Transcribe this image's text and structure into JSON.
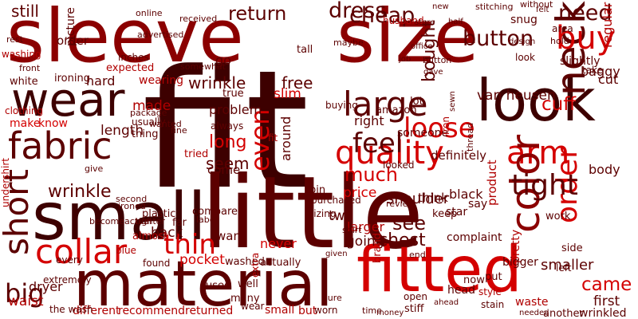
{
  "cloud": {
    "background": "#ffffff",
    "palette": {
      "darkest": "#3d0000",
      "dark": "#5c0000",
      "deep": "#8b0000",
      "mid": "#b00000",
      "bright": "#d40000",
      "light": "#e04040",
      "pale": "#e88080"
    },
    "words": [
      {
        "text": "fit",
        "tone": "darkest",
        "weight": 10
      },
      {
        "text": "little",
        "tone": "dark",
        "weight": 9
      },
      {
        "text": "sleeve",
        "tone": "deep",
        "weight": 8
      },
      {
        "text": "size",
        "tone": "deep",
        "weight": 8
      },
      {
        "text": "material",
        "tone": "dark",
        "weight": 7
      },
      {
        "text": "fitted",
        "tone": "bright",
        "weight": 7
      },
      {
        "text": "small",
        "tone": "darkest",
        "weight": 7
      },
      {
        "text": "look",
        "tone": "darkest",
        "weight": 7
      },
      {
        "text": "wear",
        "tone": "darkest",
        "weight": 6
      },
      {
        "text": "fabric",
        "tone": "dark",
        "weight": 5
      },
      {
        "text": "quality",
        "tone": "bright",
        "weight": 5
      },
      {
        "text": "arm",
        "tone": "bright",
        "weight": 5
      },
      {
        "text": "neck",
        "tone": "dark",
        "weight": 5
      },
      {
        "text": "color",
        "tone": "deep",
        "weight": 5
      },
      {
        "text": "collar",
        "tone": "bright",
        "weight": 5
      },
      {
        "text": "buy",
        "tone": "bright",
        "weight": 5
      },
      {
        "text": "large",
        "tone": "dark",
        "weight": 5
      },
      {
        "text": "short",
        "tone": "dark",
        "weight": 5
      },
      {
        "text": "order",
        "tone": "bright",
        "weight": 4
      },
      {
        "text": "tight",
        "tone": "dark",
        "weight": 4
      },
      {
        "text": "feel",
        "tone": "dark",
        "weight": 4
      },
      {
        "text": "loose",
        "tone": "bright",
        "weight": 4
      },
      {
        "text": "thin",
        "tone": "bright",
        "weight": 4
      },
      {
        "text": "big",
        "tone": "dark",
        "weight": 4
      },
      {
        "text": "even",
        "tone": "bright",
        "weight": 4
      },
      {
        "text": "button",
        "tone": "dark",
        "weight": 3
      },
      {
        "text": "dress",
        "tone": "dark",
        "weight": 3
      },
      {
        "text": "return",
        "tone": "dark",
        "weight": 3
      },
      {
        "text": "cheap",
        "tone": "dark",
        "weight": 3
      },
      {
        "text": "need",
        "tone": "dark",
        "weight": 3
      },
      {
        "text": "wrinkle",
        "tone": "dark",
        "weight": 3
      },
      {
        "text": "much",
        "tone": "bright",
        "weight": 3
      },
      {
        "text": "see",
        "tone": "dark",
        "weight": 3
      },
      {
        "text": "chest",
        "tone": "dark",
        "weight": 3
      },
      {
        "text": "came",
        "tone": "bright",
        "weight": 3
      },
      {
        "text": "long",
        "tone": "bright",
        "weight": 3
      },
      {
        "text": "cuff",
        "tone": "bright",
        "weight": 3
      },
      {
        "text": "bought",
        "tone": "dark",
        "weight": 3
      },
      {
        "text": "still",
        "tone": "dark",
        "weight": 2
      },
      {
        "text": "seem",
        "tone": "dark",
        "weight": 2
      },
      {
        "text": "made",
        "tone": "mid",
        "weight": 2
      },
      {
        "text": "free",
        "tone": "dark",
        "weight": 2
      },
      {
        "text": "wrinkle",
        "tone": "dark",
        "weight": 2
      },
      {
        "text": "shoulder",
        "tone": "dark",
        "weight": 2
      },
      {
        "text": "larger",
        "tone": "mid",
        "weight": 2
      },
      {
        "text": "price",
        "tone": "bright",
        "weight": 2
      },
      {
        "text": "two",
        "tone": "dark",
        "weight": 2
      },
      {
        "text": "going",
        "tone": "dark",
        "weight": 2
      },
      {
        "text": "smaller",
        "tone": "dark",
        "weight": 2
      },
      {
        "text": "pocket",
        "tone": "bright",
        "weight": 2
      },
      {
        "text": "back",
        "tone": "dark",
        "weight": 2
      },
      {
        "text": "van heusen",
        "tone": "dark",
        "weight": 2
      },
      {
        "text": "length",
        "tone": "dark",
        "weight": 2
      },
      {
        "text": "problem",
        "tone": "dark",
        "weight": 2
      },
      {
        "text": "first",
        "tone": "dark",
        "weight": 2
      },
      {
        "text": "regular",
        "tone": "mid",
        "weight": 2
      },
      {
        "text": "product",
        "tone": "mid",
        "weight": 2
      },
      {
        "text": "pretty",
        "tone": "mid",
        "weight": 2
      },
      {
        "text": "waist",
        "tone": "mid",
        "weight": 2
      },
      {
        "text": "make",
        "tone": "bright",
        "weight": 2
      },
      {
        "text": "know",
        "tone": "bright",
        "weight": 2
      },
      {
        "text": "picture",
        "tone": "dark",
        "weight": 2
      },
      {
        "text": "baggy",
        "tone": "dark",
        "weight": 2
      },
      {
        "text": "cut",
        "tone": "dark",
        "weight": 2
      },
      {
        "text": "body",
        "tone": "dark",
        "weight": 2
      },
      {
        "text": "black",
        "tone": "dark",
        "weight": 2
      },
      {
        "text": "different",
        "tone": "mid",
        "weight": 2
      },
      {
        "text": "recommend",
        "tone": "mid",
        "weight": 2
      },
      {
        "text": "returned",
        "tone": "mid",
        "weight": 2
      },
      {
        "text": "small",
        "tone": "mid",
        "weight": 2
      },
      {
        "text": "but",
        "tone": "mid",
        "weight": 2
      },
      {
        "text": "washed",
        "tone": "dark",
        "weight": 2
      },
      {
        "text": "slim",
        "tone": "bright",
        "weight": 2
      },
      {
        "text": "wearing",
        "tone": "mid",
        "weight": 2
      },
      {
        "text": "hard",
        "tone": "dark",
        "weight": 2
      },
      {
        "text": "around",
        "tone": "dark",
        "weight": 2
      },
      {
        "text": "right",
        "tone": "dark",
        "weight": 2
      },
      {
        "text": "order",
        "tone": "dark",
        "weight": 2
      },
      {
        "text": "definitely",
        "tone": "dark",
        "weight": 2
      },
      {
        "text": "never",
        "tone": "bright",
        "weight": 2
      },
      {
        "text": "want",
        "tone": "dark",
        "weight": 2
      },
      {
        "text": "think",
        "tone": "dark",
        "weight": 2
      },
      {
        "text": "come",
        "tone": "dark",
        "weight": 2
      },
      {
        "text": "dryer",
        "tone": "dark",
        "weight": 2
      },
      {
        "text": "wrinkled",
        "tone": "dark",
        "weight": 2
      },
      {
        "text": "amazon",
        "tone": "dark",
        "weight": 1
      },
      {
        "text": "someone",
        "tone": "dark",
        "weight": 1
      },
      {
        "text": "white",
        "tone": "dark",
        "weight": 1
      },
      {
        "text": "ironing",
        "tone": "dark",
        "weight": 1
      },
      {
        "text": "washing",
        "tone": "mid",
        "weight": 1
      },
      {
        "text": "expected",
        "tone": "mid",
        "weight": 1
      },
      {
        "text": "husband",
        "tone": "mid",
        "weight": 1
      },
      {
        "text": "inches",
        "tone": "dark",
        "weight": 1
      },
      {
        "text": "tried",
        "tone": "mid",
        "weight": 1
      },
      {
        "text": "thing",
        "tone": "dark",
        "weight": 1
      },
      {
        "text": "lot",
        "tone": "dark",
        "weight": 1
      },
      {
        "text": "buying",
        "tone": "dark",
        "weight": 1
      },
      {
        "text": "fit",
        "tone": "mid",
        "weight": 1
      },
      {
        "text": "iron",
        "tone": "mid",
        "weight": 1
      },
      {
        "text": "star",
        "tone": "dark",
        "weight": 1
      },
      {
        "text": "say",
        "tone": "dark",
        "weight": 1
      },
      {
        "text": "complaint",
        "tone": "dark",
        "weight": 1
      },
      {
        "text": "end",
        "tone": "dark",
        "weight": 1
      },
      {
        "text": "brand",
        "tone": "mid",
        "weight": 1
      },
      {
        "text": "head",
        "tone": "dark",
        "weight": 1
      },
      {
        "text": "waste",
        "tone": "mid",
        "weight": 1
      },
      {
        "text": "another",
        "tone": "dark",
        "weight": 1
      },
      {
        "text": "style",
        "tone": "mid",
        "weight": 1
      },
      {
        "text": "now",
        "tone": "dark",
        "weight": 1
      },
      {
        "text": "put",
        "tone": "dark",
        "weight": 1
      },
      {
        "text": "side",
        "tone": "dark",
        "weight": 1
      },
      {
        "text": "bigger",
        "tone": "dark",
        "weight": 1
      },
      {
        "text": "actually",
        "tone": "dark",
        "weight": 1
      },
      {
        "text": "extra",
        "tone": "mid",
        "weight": 1
      },
      {
        "text": "many",
        "tone": "dark",
        "weight": 1
      },
      {
        "text": "used",
        "tone": "dark",
        "weight": 1
      },
      {
        "text": "compared",
        "tone": "dark",
        "weight": 1
      },
      {
        "text": "almost",
        "tone": "mid",
        "weight": 1
      },
      {
        "text": "blue",
        "tone": "mid",
        "weight": 1
      },
      {
        "text": "found",
        "tone": "dark",
        "weight": 1
      },
      {
        "text": "extremely",
        "tone": "dark",
        "weight": 1
      },
      {
        "text": "undershirt",
        "tone": "mid",
        "weight": 1
      },
      {
        "text": "every",
        "tone": "dark",
        "weight": 1
      },
      {
        "text": "well",
        "tone": "dark",
        "weight": 1
      },
      {
        "text": "clothing",
        "tone": "mid",
        "weight": 1
      },
      {
        "text": "stiff",
        "tone": "dark",
        "weight": 1
      },
      {
        "text": "the wash",
        "tone": "dark",
        "weight": 1
      },
      {
        "text": "wear",
        "tone": "dark",
        "weight": 1
      },
      {
        "text": "purchased",
        "tone": "dark",
        "weight": 1
      },
      {
        "text": "pin",
        "tone": "dark",
        "weight": 1
      },
      {
        "text": "sizing",
        "tone": "dark",
        "weight": 1
      },
      {
        "text": "work",
        "tone": "dark",
        "weight": 1
      },
      {
        "text": "left",
        "tone": "dark",
        "weight": 1
      },
      {
        "text": "looked",
        "tone": "dark",
        "weight": 1
      },
      {
        "text": "usually",
        "tone": "dark",
        "weight": 1
      },
      {
        "text": "package",
        "tone": "dark",
        "weight": 1
      },
      {
        "text": "wanted",
        "tone": "dark",
        "weight": 1
      },
      {
        "text": "true",
        "tone": "dark",
        "weight": 1
      },
      {
        "text": "always",
        "tone": "dark",
        "weight": 1
      },
      {
        "text": "fine",
        "tone": "dark",
        "weight": 1
      },
      {
        "text": "slightly",
        "tone": "dark",
        "weight": 1
      },
      {
        "text": "take",
        "tone": "dark",
        "weight": 1
      },
      {
        "text": "go",
        "tone": "dark",
        "weight": 1
      },
      {
        "text": "somewhat",
        "tone": "dark",
        "weight": 1
      },
      {
        "text": "received",
        "tone": "dark",
        "weight": 1
      },
      {
        "text": "advertised",
        "tone": "dark",
        "weight": 1
      },
      {
        "text": "online",
        "tone": "dark",
        "weight": 1
      },
      {
        "text": "tall",
        "tone": "dark",
        "weight": 1
      },
      {
        "text": "maybe",
        "tone": "dark",
        "weight": 1
      },
      {
        "text": "without",
        "tone": "dark",
        "weight": 1
      },
      {
        "text": "snug",
        "tone": "dark",
        "weight": 1
      },
      {
        "text": "area",
        "tone": "dark",
        "weight": 1
      },
      {
        "text": "hold",
        "tone": "dark",
        "weight": 1
      },
      {
        "text": "look",
        "tone": "dark",
        "weight": 1
      },
      {
        "text": "front",
        "tone": "dark",
        "weight": 1
      },
      {
        "text": "rest",
        "tone": "dark",
        "weight": 1
      },
      {
        "text": "give",
        "tone": "dark",
        "weight": 1
      },
      {
        "text": "plastic",
        "tone": "dark",
        "weight": 1
      },
      {
        "text": "second",
        "tone": "dark",
        "weight": 1
      },
      {
        "text": "becomeactual",
        "tone": "dark",
        "weight": 1
      },
      {
        "text": "ironed",
        "tone": "dark",
        "weight": 1
      },
      {
        "text": "far",
        "tone": "dark",
        "weight": 1
      },
      {
        "text": "tighter",
        "tone": "dark",
        "weight": 1
      },
      {
        "text": "label",
        "tone": "dark",
        "weight": 1
      },
      {
        "text": "shirt",
        "tone": "dark",
        "weight": 1
      },
      {
        "text": "sewn",
        "tone": "dark",
        "weight": 1
      },
      {
        "text": "thread",
        "tone": "dark",
        "weight": 1
      },
      {
        "text": "stitching",
        "tone": "dark",
        "weight": 1
      },
      {
        "text": "button",
        "tone": "dark",
        "weight": 1
      },
      {
        "text": "stain",
        "tone": "dark",
        "weight": 1
      },
      {
        "text": "needed",
        "tone": "dark",
        "weight": 1
      },
      {
        "text": "open",
        "tone": "dark",
        "weight": 1
      },
      {
        "text": "ahead",
        "tone": "dark",
        "weight": 1
      },
      {
        "text": "money",
        "tone": "dark",
        "weight": 1
      },
      {
        "text": "worn",
        "tone": "dark",
        "weight": 1
      },
      {
        "text": "sure",
        "tone": "dark",
        "weight": 1
      },
      {
        "text": "review",
        "tone": "dark",
        "weight": 1
      },
      {
        "text": "keep",
        "tone": "dark",
        "weight": 1
      },
      {
        "text": "time",
        "tone": "dark",
        "weight": 1
      },
      {
        "text": "given",
        "tone": "dark",
        "weight": 1
      },
      {
        "text": "office",
        "tone": "dark",
        "weight": 1
      },
      {
        "text": "gave",
        "tone": "dark",
        "weight": 1
      },
      {
        "text": "job",
        "tone": "dark",
        "weight": 1
      },
      {
        "text": "half",
        "tone": "dark",
        "weight": 1
      },
      {
        "text": "store",
        "tone": "dark",
        "weight": 1
      },
      {
        "text": "new",
        "tone": "dark",
        "weight": 1
      },
      {
        "text": "felt",
        "tone": "dark",
        "weight": 1
      },
      {
        "text": "design",
        "tone": "dark",
        "weight": 1
      }
    ]
  }
}
